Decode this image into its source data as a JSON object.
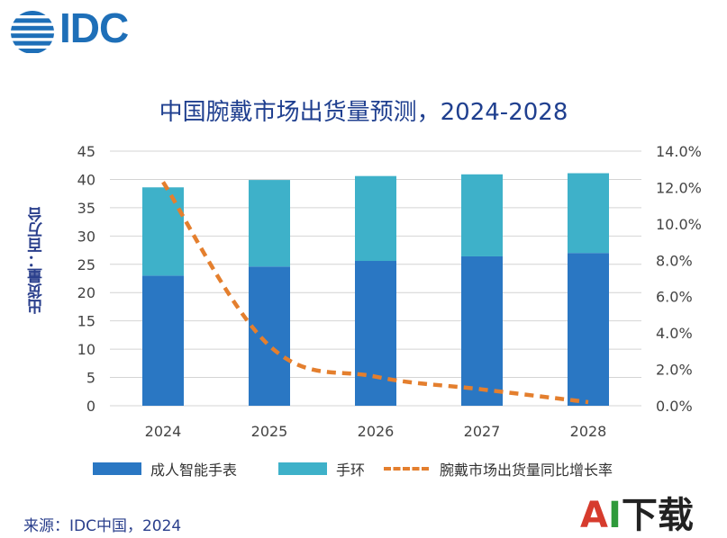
{
  "logo": {
    "text": "IDC"
  },
  "colors": {
    "smartwatch": "#2a77c3",
    "band": "#3eb1c9",
    "line": "#e47f2e",
    "title": "#1f3f8f"
  },
  "legend": {
    "smartwatch": "成人智能手表",
    "band": "手环",
    "growth": "腕戴市场出货量同比增长率"
  },
  "source": "来源：IDC中国，2024",
  "watermark": {
    "a": "A",
    "i": "I",
    "rest": "下载"
  },
  "chart_data": {
    "type": "bar",
    "stacked": true,
    "title": "中国腕戴市场出货量预测，2024-2028",
    "ylabel": "出货量：百万台",
    "categories": [
      "2024",
      "2025",
      "2026",
      "2027",
      "2028"
    ],
    "ylim": [
      0,
      45
    ],
    "yticks": [
      "0",
      "5",
      "10",
      "15",
      "20",
      "25",
      "30",
      "35",
      "40",
      "45"
    ],
    "y2lim": [
      0,
      14
    ],
    "y2ticks": [
      "0.0%",
      "2.0%",
      "4.0%",
      "6.0%",
      "8.0%",
      "10.0%",
      "12.0%",
      "14.0%"
    ],
    "grid": true,
    "legend_position": "bottom",
    "series": [
      {
        "name": "成人智能手表",
        "values": [
          23.0,
          24.6,
          25.6,
          26.4,
          27.0
        ],
        "axis": "left",
        "type": "bar"
      },
      {
        "name": "手环",
        "values": [
          15.6,
          15.3,
          15.0,
          14.5,
          14.1
        ],
        "axis": "left",
        "type": "bar"
      },
      {
        "name": "腕戴市场出货量同比增长率",
        "values": [
          12.3,
          3.3,
          1.6,
          0.9,
          0.2
        ],
        "unit": "%",
        "axis": "right",
        "type": "line",
        "style": "dashed"
      }
    ]
  }
}
